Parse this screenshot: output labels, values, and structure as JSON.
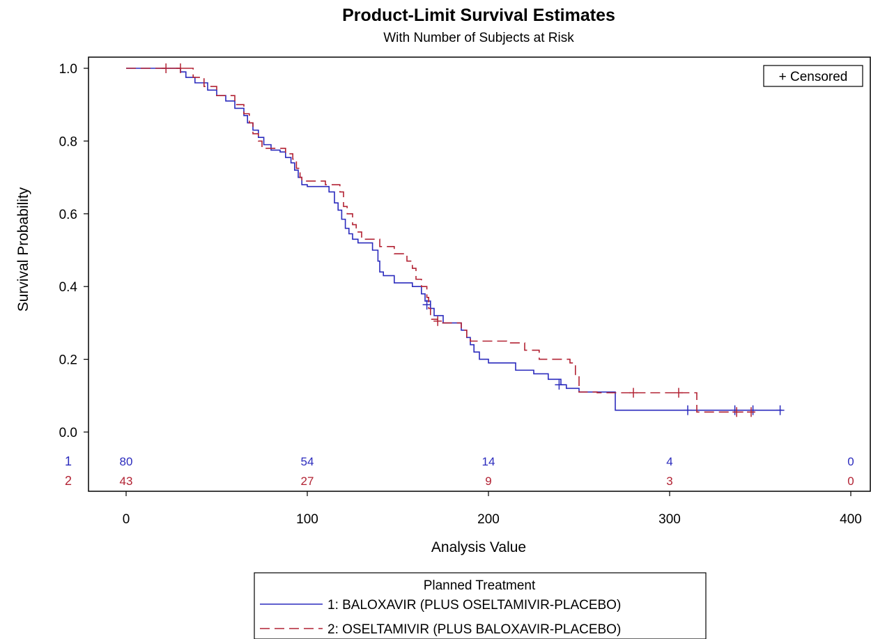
{
  "chart_data": {
    "type": "line",
    "title": "Product-Limit Survival Estimates",
    "subtitle": "With Number of Subjects at Risk",
    "xlabel": "Analysis Value",
    "ylabel": "Survival Probability",
    "xlim": [
      -10,
      400
    ],
    "ylim": [
      0,
      1
    ],
    "xticks": [
      "0",
      "100",
      "200",
      "300",
      "400"
    ],
    "yticks": [
      "0.0",
      "0.2",
      "0.4",
      "0.6",
      "0.8",
      "1.0"
    ],
    "grid": false,
    "censor_legend": "+ Censored",
    "legend_title": "Planned Treatment",
    "legend_position": "bottom",
    "series": [
      {
        "name": "1: BALOXAVIR (PLUS OSELTAMIVIR-PLACEBO)",
        "color": "#2b2bbd",
        "dash": "solid",
        "steps": [
          [
            0,
            1.0
          ],
          [
            30,
            0.99
          ],
          [
            33,
            0.975
          ],
          [
            38,
            0.96
          ],
          [
            45,
            0.94
          ],
          [
            50,
            0.925
          ],
          [
            55,
            0.91
          ],
          [
            60,
            0.89
          ],
          [
            65,
            0.87
          ],
          [
            67,
            0.85
          ],
          [
            70,
            0.83
          ],
          [
            73,
            0.81
          ],
          [
            76,
            0.79
          ],
          [
            80,
            0.775
          ],
          [
            85,
            0.77
          ],
          [
            88,
            0.755
          ],
          [
            91,
            0.74
          ],
          [
            93,
            0.72
          ],
          [
            95,
            0.7
          ],
          [
            97,
            0.68
          ],
          [
            100,
            0.675
          ],
          [
            112,
            0.66
          ],
          [
            115,
            0.63
          ],
          [
            117,
            0.61
          ],
          [
            119,
            0.585
          ],
          [
            121,
            0.56
          ],
          [
            123,
            0.545
          ],
          [
            125,
            0.53
          ],
          [
            128,
            0.52
          ],
          [
            136,
            0.5
          ],
          [
            139,
            0.47
          ],
          [
            140,
            0.44
          ],
          [
            142,
            0.43
          ],
          [
            148,
            0.41
          ],
          [
            158,
            0.4
          ],
          [
            163,
            0.38
          ],
          [
            165,
            0.36
          ],
          [
            168,
            0.34
          ],
          [
            170,
            0.32
          ],
          [
            175,
            0.3
          ],
          [
            185,
            0.28
          ],
          [
            188,
            0.26
          ],
          [
            190,
            0.24
          ],
          [
            192,
            0.22
          ],
          [
            195,
            0.2
          ],
          [
            200,
            0.19
          ],
          [
            215,
            0.17
          ],
          [
            225,
            0.16
          ],
          [
            233,
            0.145
          ],
          [
            240,
            0.13
          ],
          [
            243,
            0.12
          ],
          [
            250,
            0.11
          ],
          [
            270,
            0.06
          ],
          [
            362,
            0.06
          ]
        ],
        "censored": [
          [
            166,
            0.35
          ],
          [
            239,
            0.13
          ],
          [
            310,
            0.06
          ],
          [
            336,
            0.06
          ],
          [
            346,
            0.06
          ],
          [
            361,
            0.06
          ]
        ],
        "at_risk": [
          80,
          54,
          14,
          4,
          0
        ]
      },
      {
        "name": "2: OSELTAMIVIR (PLUS BALOXAVIR-PLACEBO)",
        "color": "#b22233",
        "dash": "dashed",
        "steps": [
          [
            0,
            1.0
          ],
          [
            37,
            0.975
          ],
          [
            43,
            0.95
          ],
          [
            50,
            0.925
          ],
          [
            60,
            0.9
          ],
          [
            65,
            0.875
          ],
          [
            68,
            0.85
          ],
          [
            70,
            0.82
          ],
          [
            73,
            0.8
          ],
          [
            75,
            0.78
          ],
          [
            88,
            0.765
          ],
          [
            92,
            0.75
          ],
          [
            94,
            0.725
          ],
          [
            96,
            0.7
          ],
          [
            97,
            0.69
          ],
          [
            110,
            0.68
          ],
          [
            118,
            0.66
          ],
          [
            120,
            0.62
          ],
          [
            122,
            0.6
          ],
          [
            125,
            0.57
          ],
          [
            127,
            0.55
          ],
          [
            130,
            0.53
          ],
          [
            140,
            0.51
          ],
          [
            148,
            0.49
          ],
          [
            155,
            0.47
          ],
          [
            158,
            0.45
          ],
          [
            160,
            0.42
          ],
          [
            163,
            0.4
          ],
          [
            166,
            0.37
          ],
          [
            167,
            0.34
          ],
          [
            168,
            0.31
          ],
          [
            172,
            0.3
          ],
          [
            185,
            0.28
          ],
          [
            188,
            0.26
          ],
          [
            190,
            0.25
          ],
          [
            200,
            0.25
          ],
          [
            210,
            0.245
          ],
          [
            220,
            0.225
          ],
          [
            228,
            0.2
          ],
          [
            245,
            0.19
          ],
          [
            248,
            0.155
          ],
          [
            250,
            0.11
          ],
          [
            260,
            0.108
          ],
          [
            315,
            0.055
          ],
          [
            347,
            0.055
          ]
        ],
        "censored": [
          [
            22,
            1.0
          ],
          [
            30,
            1.0
          ],
          [
            172,
            0.305
          ],
          [
            280,
            0.108
          ],
          [
            305,
            0.108
          ],
          [
            337,
            0.055
          ],
          [
            345,
            0.055
          ]
        ],
        "at_risk": [
          43,
          27,
          9,
          3,
          0
        ]
      }
    ],
    "at_risk_x": [
      0,
      100,
      200,
      300,
      400
    ],
    "at_risk_labels": [
      "1",
      "2"
    ]
  }
}
